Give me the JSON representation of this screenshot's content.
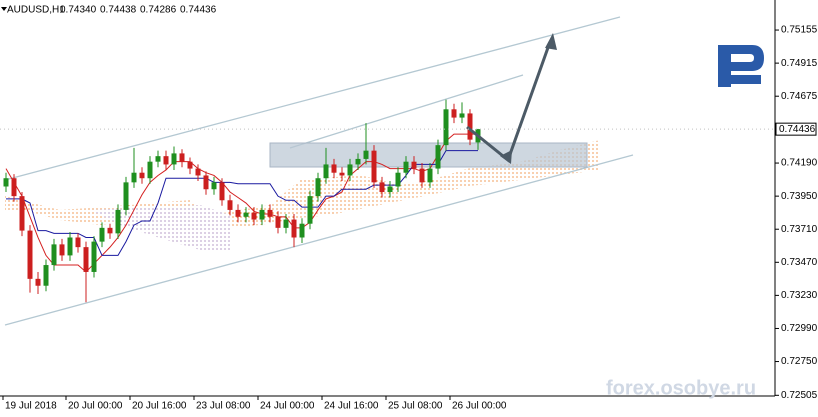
{
  "chart_data": {
    "type": "candlestick",
    "title": "AUDUSD,H1",
    "header_ohlc_labels": [
      "0.74340",
      "0.74438",
      "0.74286",
      "0.74436"
    ],
    "watermark": "forex.osobye.ru",
    "up_color": "#1f8f1f",
    "down_color": "#cc1f1f",
    "xlim": [
      -1.5,
      192.25
    ],
    "ylim": [
      0.725,
      0.75373
    ],
    "yticks": [
      0.75155,
      0.74915,
      0.74675,
      {
        "value": 0.7419,
        "label": "0.74190"
      },
      {
        "value": 0.7395,
        "label": "0.73950"
      },
      {
        "value": 0.7371,
        "label": "0.73710"
      },
      {
        "value": 0.7347,
        "label": "0.73470"
      },
      {
        "value": 0.7323,
        "label": "0.73230"
      },
      {
        "value": 0.7299,
        "label": "0.72990"
      },
      {
        "value": 0.7275,
        "label": "0.72750"
      },
      0.72505
    ],
    "xticks": [
      {
        "value": -0.75,
        "label": "19 Jul 2018"
      },
      {
        "value": 15,
        "label": "20 Jul 00:00"
      },
      {
        "value": 31,
        "label": "20 Jul 16:00"
      },
      {
        "value": 47,
        "label": "23 Jul 08:00"
      },
      {
        "value": 63,
        "label": "24 Jul 00:00"
      },
      {
        "value": 79,
        "label": "24 Jul 16:00"
      },
      {
        "value": 95,
        "label": "25 Jul 08:00"
      },
      {
        "value": 111,
        "label": "26 Jul 00:00"
      }
    ],
    "current_price": 0.74436,
    "candles": {
      "x": [
        0,
        2,
        4,
        6,
        8,
        10,
        12,
        14,
        16,
        18,
        20,
        22,
        24,
        26,
        28,
        30,
        32,
        34,
        36,
        38,
        40,
        42,
        44,
        46,
        48,
        50,
        52,
        54,
        56,
        58,
        60,
        62,
        64,
        66,
        68,
        70,
        72,
        74,
        76,
        78,
        80,
        82,
        84,
        86,
        88,
        90,
        92,
        94,
        96,
        98,
        100,
        102,
        104,
        106,
        108,
        110,
        112,
        114,
        116,
        118
      ],
      "open": [
        0.7402,
        0.7408,
        0.7395,
        0.737,
        0.7335,
        0.733,
        0.7345,
        0.736,
        0.7352,
        0.7365,
        0.7358,
        0.734,
        0.7362,
        0.7372,
        0.7368,
        0.7385,
        0.7405,
        0.7412,
        0.7408,
        0.742,
        0.7424,
        0.7418,
        0.7426,
        0.742,
        0.7415,
        0.741,
        0.74,
        0.7405,
        0.7392,
        0.7385,
        0.738,
        0.7383,
        0.7378,
        0.7385,
        0.738,
        0.7372,
        0.7378,
        0.7365,
        0.7375,
        0.7395,
        0.7408,
        0.7418,
        0.7412,
        0.741,
        0.7418,
        0.7422,
        0.7428,
        0.7405,
        0.7398,
        0.7402,
        0.7412,
        0.742,
        0.7415,
        0.7405,
        0.7415,
        0.7432,
        0.7458,
        0.7452,
        0.7455,
        0.7434
      ],
      "high": [
        0.7412,
        0.7411,
        0.7398,
        0.7374,
        0.734,
        0.7349,
        0.7364,
        0.7364,
        0.7369,
        0.7368,
        0.7362,
        0.7366,
        0.7376,
        0.7375,
        0.7389,
        0.7409,
        0.743,
        0.7416,
        0.7424,
        0.7428,
        0.7428,
        0.7431,
        0.7429,
        0.7423,
        0.7418,
        0.7413,
        0.7409,
        0.7408,
        0.7396,
        0.7389,
        0.7387,
        0.7387,
        0.7389,
        0.7389,
        0.7384,
        0.7382,
        0.7382,
        0.7379,
        0.7399,
        0.7412,
        0.743,
        0.7422,
        0.7416,
        0.7422,
        0.7426,
        0.7448,
        0.7432,
        0.7409,
        0.7406,
        0.7416,
        0.7424,
        0.7424,
        0.7419,
        0.7419,
        0.7436,
        0.7465,
        0.7462,
        0.7463,
        0.7458,
        0.74438
      ],
      "low": [
        0.7398,
        0.7391,
        0.7366,
        0.7325,
        0.7324,
        0.7326,
        0.7341,
        0.7348,
        0.7348,
        0.7354,
        0.7318,
        0.7336,
        0.7358,
        0.7364,
        0.7364,
        0.7381,
        0.7401,
        0.7404,
        0.7404,
        0.7416,
        0.7414,
        0.7414,
        0.7416,
        0.7411,
        0.7406,
        0.7396,
        0.7396,
        0.7388,
        0.7381,
        0.7376,
        0.7376,
        0.7374,
        0.7374,
        0.7376,
        0.7368,
        0.7368,
        0.7358,
        0.7361,
        0.7371,
        0.7391,
        0.7404,
        0.7408,
        0.7406,
        0.7406,
        0.7414,
        0.7418,
        0.7401,
        0.7394,
        0.7394,
        0.7398,
        0.7408,
        0.7411,
        0.7401,
        0.7401,
        0.7411,
        0.7428,
        0.7448,
        0.7448,
        0.7432,
        0.74286
      ],
      "close": [
        0.7408,
        0.7395,
        0.737,
        0.7335,
        0.733,
        0.7345,
        0.736,
        0.7352,
        0.7365,
        0.7358,
        0.734,
        0.7362,
        0.7372,
        0.7368,
        0.7385,
        0.7405,
        0.7412,
        0.7408,
        0.742,
        0.7424,
        0.7418,
        0.7426,
        0.742,
        0.7415,
        0.741,
        0.74,
        0.7405,
        0.7392,
        0.7385,
        0.738,
        0.7383,
        0.7378,
        0.7385,
        0.738,
        0.7372,
        0.7378,
        0.7365,
        0.7375,
        0.7395,
        0.7408,
        0.7418,
        0.7412,
        0.741,
        0.7418,
        0.7422,
        0.7428,
        0.7405,
        0.7398,
        0.7402,
        0.7412,
        0.742,
        0.7415,
        0.7405,
        0.7415,
        0.7432,
        0.7458,
        0.7452,
        0.7455,
        0.7436,
        0.74436
      ]
    },
    "lines": [
      {
        "color": "#d42020",
        "values": [
          0.7415,
          0.7405,
          0.7395,
          0.738,
          0.7365,
          0.7352,
          0.7345,
          0.7345,
          0.7345,
          0.7345,
          0.734,
          0.7346,
          0.7352,
          0.7358,
          0.7365,
          0.7374,
          0.7385,
          0.7396,
          0.7405,
          0.741,
          0.7414,
          0.742,
          0.742,
          0.742,
          0.7415,
          0.7412,
          0.741,
          0.7405,
          0.7398,
          0.7394,
          0.739,
          0.7384,
          0.7382,
          0.7382,
          0.738,
          0.738,
          0.7372,
          0.7372,
          0.7376,
          0.7385,
          0.7393,
          0.7395,
          0.7398,
          0.741,
          0.7415,
          0.742,
          0.742,
          0.7418,
          0.7415,
          0.7415,
          0.7415,
          0.7415,
          0.7413,
          0.7415,
          0.7425,
          0.7435,
          0.744,
          0.744,
          0.744,
          0.744
        ]
      },
      {
        "color": "#1a1aa0",
        "values": [
          0.7393,
          0.7393,
          0.7393,
          0.739,
          0.737,
          0.737,
          0.7368,
          0.7368,
          0.7368,
          0.7368,
          0.7365,
          0.7365,
          0.7352,
          0.7352,
          0.7352,
          0.7362,
          0.7374,
          0.7377,
          0.7377,
          0.739,
          0.7408,
          0.7408,
          0.7408,
          0.7408,
          0.7408,
          0.7408,
          0.7405,
          0.7405,
          0.7405,
          0.7404,
          0.7404,
          0.7404,
          0.7404,
          0.7404,
          0.7395,
          0.7392,
          0.7392,
          0.7387,
          0.7387,
          0.7387,
          0.7395,
          0.7395,
          0.74,
          0.74,
          0.74,
          0.74,
          0.7403,
          0.7403,
          0.7403,
          0.7403,
          0.741,
          0.7418,
          0.7418,
          0.7418,
          0.7418,
          0.7428,
          0.7428,
          0.7428,
          0.7428,
          0.7428
        ]
      }
    ]
  }
}
